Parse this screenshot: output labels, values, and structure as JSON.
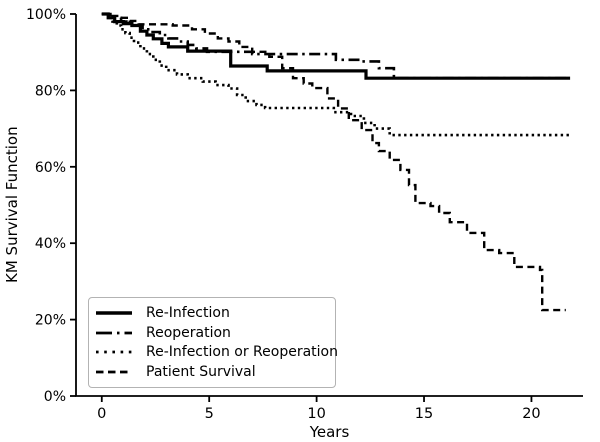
{
  "figure": {
    "background": "#ffffff",
    "curve_color": "#000000",
    "axis_color": "#000000",
    "legend_border_color": "#b3b3b3"
  },
  "chart_data": {
    "type": "line",
    "subtype": "kaplan-meier-step",
    "title": "",
    "xlabel": "Years",
    "ylabel": "KM Survival Function",
    "xlim": [
      -1.2,
      22.4
    ],
    "ylim": [
      0,
      100
    ],
    "grid": false,
    "legend_position": "lower-left",
    "x_ticks": [
      {
        "value": 0,
        "label": "0"
      },
      {
        "value": 5,
        "label": "5"
      },
      {
        "value": 10,
        "label": "10"
      },
      {
        "value": 15,
        "label": "15"
      },
      {
        "value": 20,
        "label": "20"
      }
    ],
    "y_ticks": [
      {
        "value": 0,
        "label": "0%"
      },
      {
        "value": 20,
        "label": "20%"
      },
      {
        "value": 40,
        "label": "40%"
      },
      {
        "value": 60,
        "label": "60%"
      },
      {
        "value": 80,
        "label": "80%"
      },
      {
        "value": 100,
        "label": "100%"
      }
    ],
    "series": [
      {
        "name": "Re-Infection",
        "linestyle": "solid",
        "points": [
          [
            0,
            100
          ],
          [
            0.3,
            99
          ],
          [
            0.6,
            98
          ],
          [
            1.0,
            97.5
          ],
          [
            1.4,
            97
          ],
          [
            1.8,
            95.5
          ],
          [
            2.1,
            94.5
          ],
          [
            2.4,
            93.5
          ],
          [
            2.8,
            92.3
          ],
          [
            3.1,
            91.4
          ],
          [
            4.0,
            90.3
          ],
          [
            6.0,
            86.4
          ],
          [
            7.7,
            85.1
          ],
          [
            12.3,
            83.2
          ],
          [
            21.8,
            83.2
          ]
        ]
      },
      {
        "name": "Reoperation",
        "linestyle": "dashdot",
        "points": [
          [
            0,
            100
          ],
          [
            0.4,
            99
          ],
          [
            0.9,
            98
          ],
          [
            1.4,
            97
          ],
          [
            1.9,
            96
          ],
          [
            2.3,
            95.3
          ],
          [
            2.7,
            94.5
          ],
          [
            3.1,
            93.6
          ],
          [
            3.5,
            92.8
          ],
          [
            4.0,
            91.9
          ],
          [
            4.4,
            91.0
          ],
          [
            4.9,
            90.1
          ],
          [
            7.0,
            89.5
          ],
          [
            10.9,
            88.0
          ],
          [
            12.0,
            87.6
          ],
          [
            12.9,
            85.8
          ],
          [
            13.6,
            83.2
          ],
          [
            21.8,
            83.2
          ]
        ]
      },
      {
        "name": "Re-Infection or Reoperation",
        "linestyle": "dotted",
        "points": [
          [
            0,
            100
          ],
          [
            0.3,
            99
          ],
          [
            0.5,
            98
          ],
          [
            0.7,
            97
          ],
          [
            0.9,
            96
          ],
          [
            1.1,
            95
          ],
          [
            1.3,
            93.8
          ],
          [
            1.5,
            92.5
          ],
          [
            1.8,
            91
          ],
          [
            2.1,
            89.5
          ],
          [
            2.4,
            88
          ],
          [
            2.7,
            86.5
          ],
          [
            3.0,
            85.3
          ],
          [
            3.5,
            84.2
          ],
          [
            4.0,
            83.2
          ],
          [
            4.7,
            82.3
          ],
          [
            5.3,
            81.4
          ],
          [
            5.9,
            80.5
          ],
          [
            6.3,
            78.8
          ],
          [
            6.7,
            77.2
          ],
          [
            7.2,
            76.2
          ],
          [
            7.6,
            75.4
          ],
          [
            10.8,
            74.3
          ],
          [
            11.6,
            73.3
          ],
          [
            12.2,
            71.5
          ],
          [
            12.7,
            70.0
          ],
          [
            13.4,
            68.3
          ],
          [
            21.8,
            68.3
          ]
        ]
      },
      {
        "name": "Patient Survival",
        "linestyle": "dashed",
        "points": [
          [
            0,
            100
          ],
          [
            0.4,
            99.5
          ],
          [
            0.9,
            99
          ],
          [
            1.3,
            98.2
          ],
          [
            1.7,
            97.3
          ],
          [
            3.3,
            97.0
          ],
          [
            4.2,
            96.0
          ],
          [
            4.8,
            94.9
          ],
          [
            5.4,
            93.6
          ],
          [
            5.9,
            92.8
          ],
          [
            6.4,
            91.4
          ],
          [
            7.0,
            90.1
          ],
          [
            7.8,
            88.8
          ],
          [
            8.4,
            85.8
          ],
          [
            8.9,
            83.2
          ],
          [
            9.4,
            81.8
          ],
          [
            9.8,
            80.6
          ],
          [
            10.5,
            77.9
          ],
          [
            11.0,
            75.3
          ],
          [
            11.5,
            72.2
          ],
          [
            12.1,
            69.6
          ],
          [
            12.6,
            66.2
          ],
          [
            12.9,
            64.1
          ],
          [
            13.4,
            61.8
          ],
          [
            13.9,
            59.2
          ],
          [
            14.3,
            55.2
          ],
          [
            14.6,
            50.5
          ],
          [
            15.3,
            49.7
          ],
          [
            15.7,
            47.9
          ],
          [
            16.2,
            45.5
          ],
          [
            17.0,
            42.7
          ],
          [
            17.8,
            38.2
          ],
          [
            18.5,
            37.4
          ],
          [
            19.2,
            33.8
          ],
          [
            20.4,
            33.0
          ],
          [
            20.5,
            22.5
          ],
          [
            21.6,
            22.5
          ]
        ]
      }
    ]
  }
}
